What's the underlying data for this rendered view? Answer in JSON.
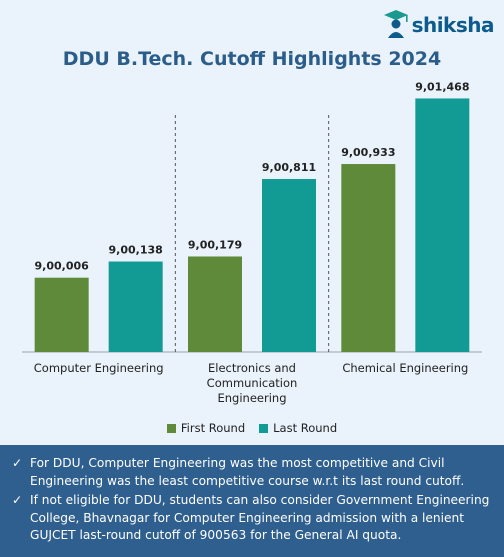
{
  "brand": {
    "name": "shiksha"
  },
  "colors": {
    "first_round": "#5f8a3a",
    "last_round": "#129b95",
    "background": "#eaf2fb",
    "notes_panel": "#2e5f8e"
  },
  "chart_data": {
    "type": "bar",
    "title": "DDU B.Tech. Cutoff Highlights 2024",
    "categories": [
      [
        "Computer Engineering"
      ],
      [
        "Electronics and",
        "Communication",
        "Engineering"
      ],
      [
        "Chemical Engineering"
      ]
    ],
    "series": [
      {
        "name": "First Round",
        "values": [
          900006,
          900179,
          900933
        ],
        "labels": [
          "9,00,006",
          "9,00,179",
          "9,00,933"
        ]
      },
      {
        "name": "Last Round",
        "values": [
          900138,
          900811,
          901468
        ],
        "labels": [
          "9,00,138",
          "9,00,811",
          "9,01,468"
        ]
      }
    ],
    "ylim": [
      899400,
      901700
    ],
    "legend_position": "bottom",
    "grid": false
  },
  "notes": [
    "For DDU, Computer Engineering was the most competitive and Civil Engineering was the least competitive course w.r.t its last round cutoff.",
    "If not eligible for DDU, students can also consider Government Engineering College, Bhavnagar for Computer Engineering admission with a lenient GUJCET last-round cutoff of 900563 for the General AI quota."
  ]
}
